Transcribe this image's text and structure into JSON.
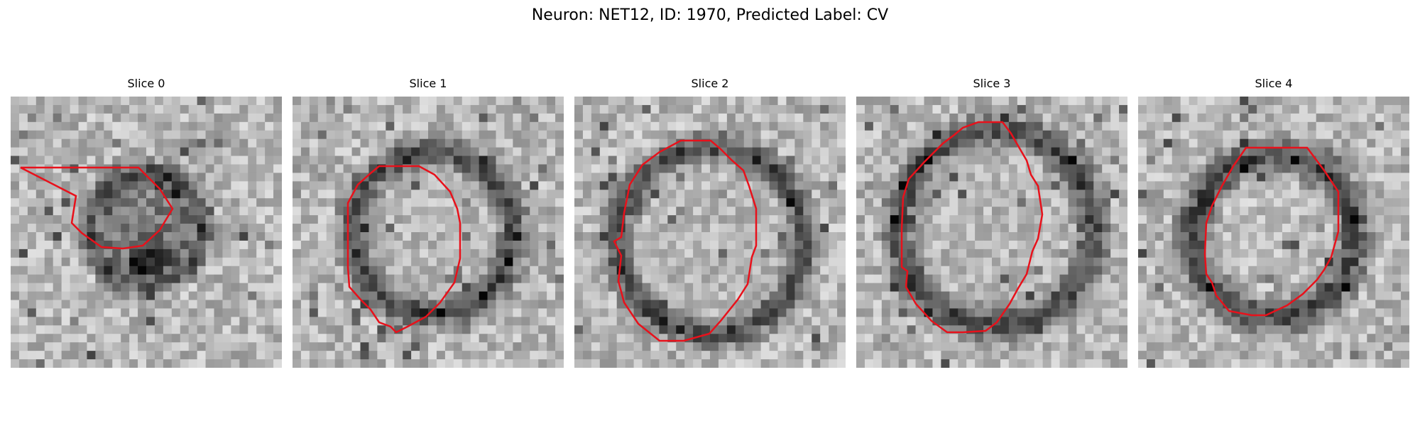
{
  "figure": {
    "title": "Neuron: NET12, ID: 1970, Predicted Label: CV"
  },
  "colors": {
    "contour": "#e8111b",
    "background": "#ffffff"
  },
  "panels": [
    {
      "title": "Slice 0"
    },
    {
      "title": "Slice 1"
    },
    {
      "title": "Slice 2"
    },
    {
      "title": "Slice 3"
    },
    {
      "title": "Slice 4"
    }
  ]
}
